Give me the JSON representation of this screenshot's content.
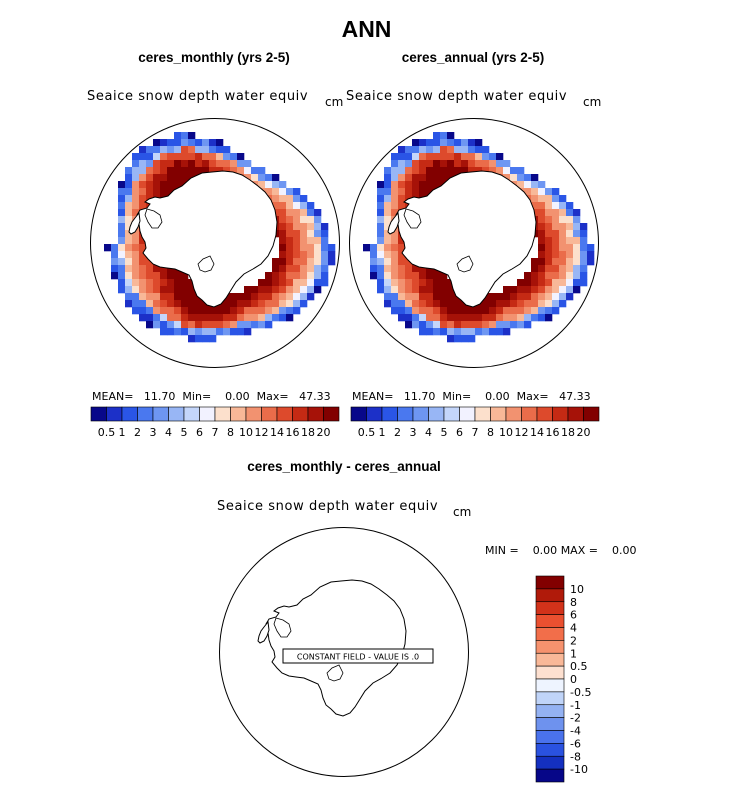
{
  "title": "ANN",
  "panels": [
    {
      "title": "ceres_monthly (yrs 2-5)",
      "variable": "Seaice snow depth water equiv",
      "units": "cm",
      "stats": {
        "mean": "11.70",
        "min": "0.00",
        "max": "47.33"
      }
    },
    {
      "title": "ceres_annual (yrs 2-5)",
      "variable": "Seaice snow depth water equiv",
      "units": "cm",
      "stats": {
        "mean": "11.70",
        "min": "0.00",
        "max": "47.33"
      }
    }
  ],
  "stats_labels": {
    "mean": "MEAN=",
    "min": "Min=",
    "max": "Max="
  },
  "colorbar": {
    "colors": [
      "#08088a",
      "#1c30c8",
      "#2a55e6",
      "#4a78ef",
      "#6e96f2",
      "#98b6f5",
      "#c4d6fa",
      "#f2f2ff",
      "#fce0cc",
      "#f8b898",
      "#f29270",
      "#ea6c4a",
      "#dd4a2c",
      "#c52a14",
      "#a61208",
      "#820000"
    ],
    "tick_labels": [
      "0.5",
      "1",
      "2",
      "3",
      "4",
      "5",
      "6",
      "7",
      "8",
      "10",
      "12",
      "14",
      "16",
      "18",
      "20"
    ]
  },
  "diff_panel": {
    "title": "ceres_monthly - ceres_annual",
    "variable": "Seaice snow depth water equiv",
    "units": "cm",
    "min_label": "MIN =",
    "min_value": "0.00",
    "max_label": "MAX =",
    "max_value": "0.00",
    "constant_label": "CONSTANT FIELD - VALUE IS .0",
    "colorbar": {
      "colors": [
        "#820000",
        "#b01a0a",
        "#d2321a",
        "#ea5030",
        "#f26e4a",
        "#f6926e",
        "#f9b898",
        "#fde0d0",
        "#eef4ff",
        "#c0d4f8",
        "#94b2f2",
        "#6e92ee",
        "#4a72ec",
        "#2a52e0",
        "#1430c0",
        "#060688"
      ],
      "tick_labels": [
        "10",
        "8",
        "6",
        "4",
        "2",
        "1",
        "0.5",
        "0",
        "-0.5",
        "-1",
        "-2",
        "-4",
        "-6",
        "-8",
        "-10"
      ]
    }
  }
}
